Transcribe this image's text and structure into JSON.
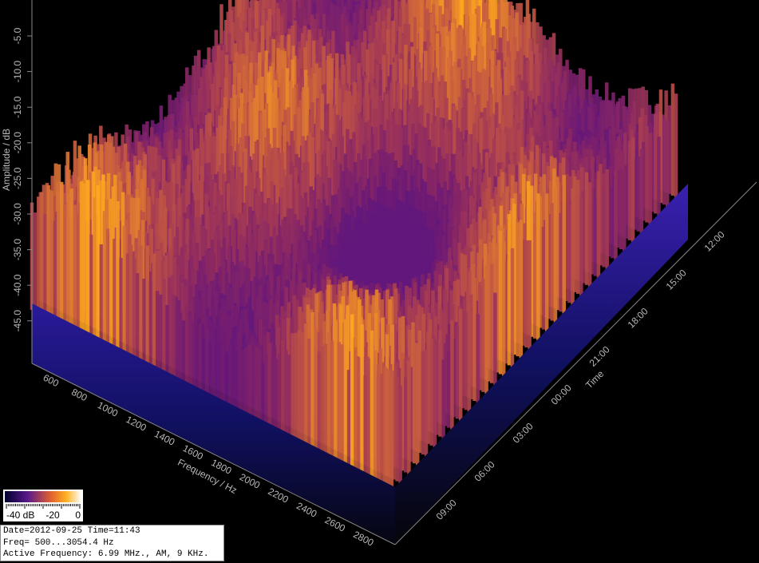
{
  "amplitude_axis": {
    "title": "Amplitude / dB",
    "ticks": [
      "-5.0",
      "-10.0",
      "-15.0",
      "-20.0",
      "-25.0",
      "-30.0",
      "-35.0",
      "-40.0",
      "-45.0"
    ]
  },
  "frequency_axis": {
    "title": "Frequency / Hz",
    "ticks": [
      "600",
      "800",
      "1000",
      "1200",
      "1400",
      "1600",
      "1800",
      "2000",
      "2200",
      "2400",
      "2600",
      "2800"
    ]
  },
  "time_axis": {
    "title": "Time",
    "ticks": [
      "12:00",
      "15:00",
      "18:00",
      "21:00",
      "00:00",
      "03:00",
      "06:00",
      "09:00"
    ]
  },
  "colorbar": {
    "labels": [
      "-40 dB",
      "-20",
      "0"
    ]
  },
  "info": {
    "lines": [
      "Date=2012-09-25 Time=11:43",
      "Freq= 500...3054.4 Hz",
      "Active Frequency: 6.99 MHz., AM, 9 KHz."
    ]
  }
}
